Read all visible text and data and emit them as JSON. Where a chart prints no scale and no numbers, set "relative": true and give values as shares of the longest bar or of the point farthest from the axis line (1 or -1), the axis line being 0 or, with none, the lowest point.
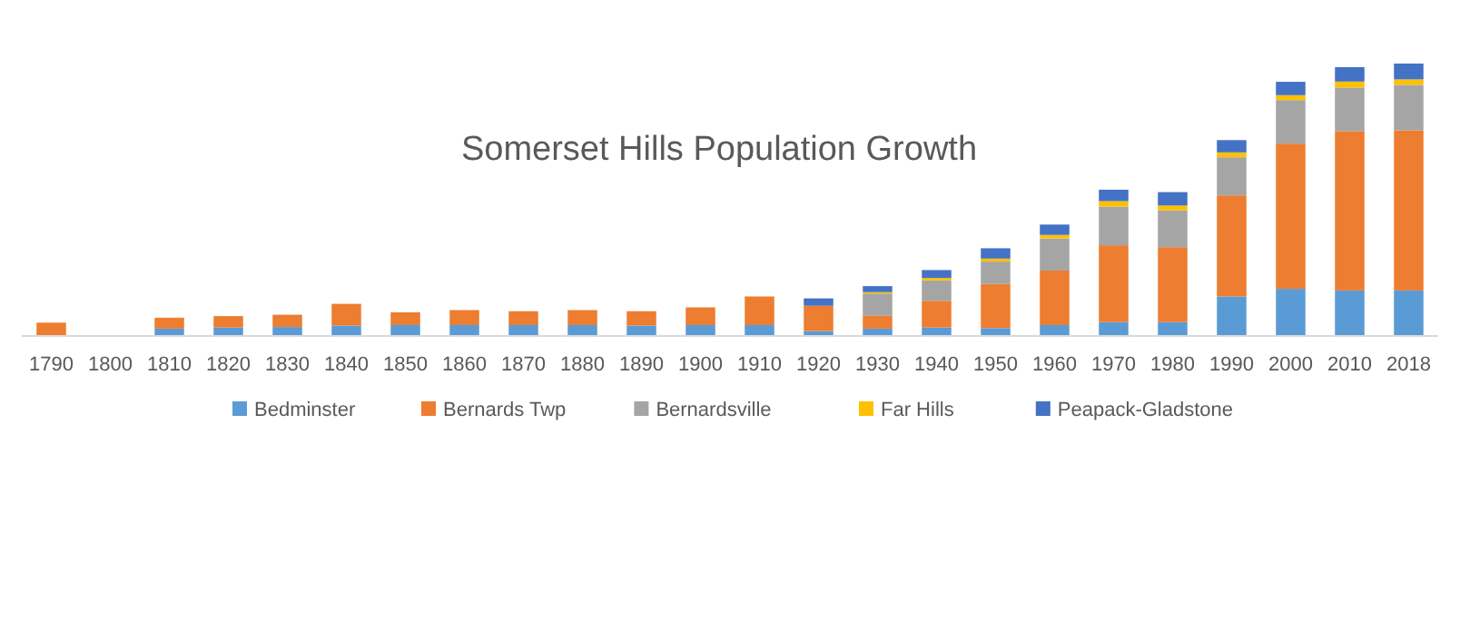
{
  "chart_data": {
    "type": "bar",
    "title": "Somerset Hills Population Growth",
    "stacked": true,
    "relative": true,
    "legend": "bottom",
    "categories": [
      "1790",
      "1800",
      "1810",
      "1820",
      "1830",
      "1840",
      "1850",
      "1860",
      "1870",
      "1880",
      "1890",
      "1900",
      "1910",
      "1920",
      "1930",
      "1940",
      "1950",
      "1960",
      "1970",
      "1980",
      "1990",
      "2000",
      "2010",
      "2018"
    ],
    "series": [
      {
        "name": "Bedminster",
        "color": "#5b9bd5",
        "values": [
          0,
          null,
          0.027,
          0.031,
          0.033,
          0.038,
          0.04,
          0.04,
          0.04,
          0.04,
          0.038,
          0.04,
          0.04,
          0.018,
          0.027,
          0.031,
          0.029,
          0.04,
          0.051,
          0.051,
          0.145,
          0.173,
          0.167,
          0.167
        ]
      },
      {
        "name": "Bernards Twp",
        "color": "#ed7d31",
        "values": [
          0.049,
          null,
          0.04,
          0.042,
          0.045,
          0.08,
          0.047,
          0.055,
          0.051,
          0.055,
          0.053,
          0.065,
          0.105,
          0.093,
          0.047,
          0.098,
          0.162,
          0.2,
          0.282,
          0.275,
          0.371,
          0.533,
          0.585,
          0.588
        ]
      },
      {
        "name": "Bernardsville",
        "color": "#a5a5a5",
        "values": [
          null,
          null,
          null,
          null,
          null,
          null,
          null,
          null,
          null,
          null,
          null,
          null,
          null,
          null,
          0.082,
          0.075,
          0.082,
          0.118,
          0.142,
          0.135,
          0.14,
          0.16,
          0.16,
          0.167
        ]
      },
      {
        "name": "Far Hills",
        "color": "#ffc000",
        "values": [
          null,
          null,
          null,
          null,
          null,
          null,
          null,
          null,
          null,
          null,
          null,
          null,
          null,
          null,
          0.005,
          0.009,
          0.011,
          0.013,
          0.02,
          0.018,
          0.018,
          0.018,
          0.022,
          0.02
        ]
      },
      {
        "name": "Peapack-Gladstone",
        "color": "#4472c4",
        "values": [
          null,
          null,
          null,
          null,
          null,
          null,
          null,
          null,
          null,
          null,
          null,
          null,
          null,
          0.027,
          0.022,
          0.029,
          0.038,
          0.038,
          0.042,
          0.049,
          0.045,
          0.049,
          0.053,
          0.058
        ]
      }
    ]
  }
}
